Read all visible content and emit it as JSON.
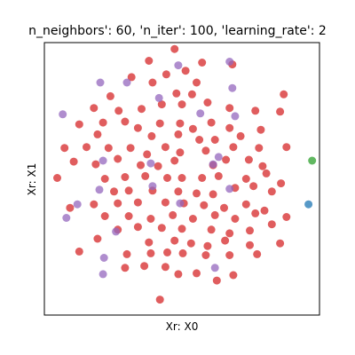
{
  "chart_data": {
    "type": "scatter",
    "title": "n_neighbors': 60, 'n_iter': 100, 'learning_rate': 2",
    "xlabel": "Xr: X0",
    "ylabel": "Xr: X1",
    "xticks": [],
    "yticks": [],
    "grid": false,
    "xlim": [
      -150,
      150
    ],
    "ylim": [
      -150,
      150
    ],
    "colors": {
      "red": "#d62728",
      "purple": "#9467bd",
      "green": "#2ca02c",
      "blue": "#1f77b4"
    },
    "series": [
      {
        "color_key": "red",
        "points": [
          [
            -8,
            143
          ],
          [
            -36,
            130
          ],
          [
            22,
            128
          ],
          [
            55,
            126
          ],
          [
            -55,
            112
          ],
          [
            -17,
            115
          ],
          [
            4,
            119
          ],
          [
            -32,
            106
          ],
          [
            16,
            106
          ],
          [
            -78,
            91
          ],
          [
            111,
            93
          ],
          [
            -6,
            94
          ],
          [
            11,
            93
          ],
          [
            -96,
            78
          ],
          [
            -69,
            75
          ],
          [
            -44,
            77
          ],
          [
            52,
            78
          ],
          [
            -22,
            82
          ],
          [
            0,
            82
          ],
          [
            28,
            84
          ],
          [
            80,
            75
          ],
          [
            107,
            74
          ],
          [
            -112,
            60
          ],
          [
            -86,
            62
          ],
          [
            -62,
            63
          ],
          [
            -24,
            61
          ],
          [
            -2,
            61
          ],
          [
            32,
            62
          ],
          [
            52,
            56
          ],
          [
            12,
            55
          ],
          [
            -48,
            56
          ],
          [
            86,
            54
          ],
          [
            -33,
            47
          ],
          [
            -92,
            49
          ],
          [
            -4,
            49
          ],
          [
            19,
            43
          ],
          [
            36,
            43
          ],
          [
            64,
            47
          ],
          [
            -128,
            34
          ],
          [
            -104,
            35
          ],
          [
            -80,
            34
          ],
          [
            -56,
            34
          ],
          [
            -18,
            35
          ],
          [
            56,
            35
          ],
          [
            84,
            34
          ],
          [
            114,
            35
          ],
          [
            -38,
            27
          ],
          [
            -2,
            29
          ],
          [
            26,
            31
          ],
          [
            -118,
            19
          ],
          [
            -94,
            16
          ],
          [
            -70,
            22
          ],
          [
            -45,
            15
          ],
          [
            -8,
            20
          ],
          [
            48,
            21
          ],
          [
            73,
            21
          ],
          [
            88,
            14
          ],
          [
            -26,
            14
          ],
          [
            34,
            15
          ],
          [
            -136,
            1
          ],
          [
            -84,
            0
          ],
          [
            -62,
            2
          ],
          [
            -40,
            3
          ],
          [
            -16,
            1
          ],
          [
            0,
            1
          ],
          [
            22,
            1
          ],
          [
            40,
            3
          ],
          [
            70,
            0
          ],
          [
            92,
            6
          ],
          [
            108,
            -5
          ],
          [
            -74,
            -14
          ],
          [
            -58,
            -13
          ],
          [
            -32,
            -13
          ],
          [
            -4,
            -14
          ],
          [
            16,
            -16
          ],
          [
            34,
            -17
          ],
          [
            58,
            -10
          ],
          [
            78,
            -8
          ],
          [
            98,
            -14
          ],
          [
            -122,
            -32
          ],
          [
            -96,
            -28
          ],
          [
            -70,
            -27
          ],
          [
            -48,
            -26
          ],
          [
            -18,
            -26
          ],
          [
            2,
            -27
          ],
          [
            24,
            -29
          ],
          [
            46,
            -32
          ],
          [
            70,
            -28
          ],
          [
            90,
            -35
          ],
          [
            -84,
            -41
          ],
          [
            -58,
            -41
          ],
          [
            -34,
            -44
          ],
          [
            -10,
            -40
          ],
          [
            12,
            -44
          ],
          [
            36,
            -40
          ],
          [
            58,
            -44
          ],
          [
            80,
            -38
          ],
          [
            114,
            -42
          ],
          [
            -70,
            -56
          ],
          [
            -48,
            -53
          ],
          [
            -22,
            -54
          ],
          [
            0,
            -55
          ],
          [
            32,
            -56
          ],
          [
            52,
            -60
          ],
          [
            74,
            -57
          ],
          [
            98,
            -50
          ],
          [
            -92,
            -66
          ],
          [
            -36,
            -70
          ],
          [
            -8,
            -68
          ],
          [
            10,
            -71
          ],
          [
            28,
            -74
          ],
          [
            47,
            -68
          ],
          [
            74,
            -73
          ],
          [
            107,
            -71
          ],
          [
            -112,
            -80
          ],
          [
            -60,
            -83
          ],
          [
            -34,
            -82
          ],
          [
            -16,
            -81
          ],
          [
            1,
            -82
          ],
          [
            26,
            -84
          ],
          [
            52,
            -84
          ],
          [
            82,
            -83
          ],
          [
            -62,
            -98
          ],
          [
            -41,
            -96
          ],
          [
            -18,
            -97
          ],
          [
            -4,
            -105
          ],
          [
            16,
            -104
          ],
          [
            38,
            -112
          ],
          [
            56,
            -106
          ],
          [
            -24,
            -133
          ]
        ]
      },
      {
        "color_key": "purple",
        "points": [
          [
            -4,
            125
          ],
          [
            52,
            129
          ],
          [
            -89,
            106
          ],
          [
            -60,
            106
          ],
          [
            55,
            100
          ],
          [
            -25,
            89
          ],
          [
            -130,
            71
          ],
          [
            20,
            72
          ],
          [
            58,
            69
          ],
          [
            -34,
            17
          ],
          [
            34,
            16
          ],
          [
            -86,
            20
          ],
          [
            40,
            24
          ],
          [
            52,
            -11
          ],
          [
            -90,
            -12
          ],
          [
            -126,
            -43
          ],
          [
            -85,
            -87
          ],
          [
            -86,
            -105
          ],
          [
            36,
            -98
          ],
          [
            -2,
            -27
          ],
          [
            -72,
            -58
          ],
          [
            -32,
            -8
          ],
          [
            -114,
            -28
          ]
        ]
      },
      {
        "color_key": "green",
        "points": [
          [
            142,
            20
          ]
        ]
      },
      {
        "color_key": "blue",
        "points": [
          [
            138,
            -28
          ]
        ]
      }
    ]
  }
}
